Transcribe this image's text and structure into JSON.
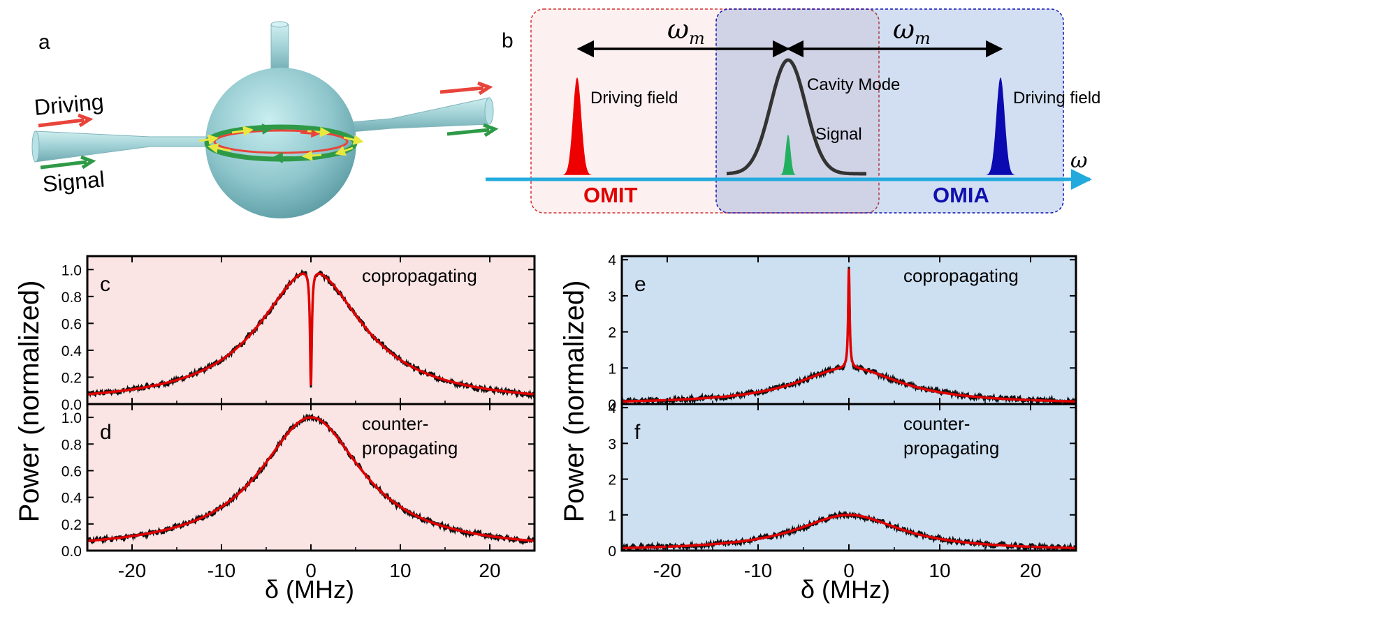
{
  "panel_a": {
    "label": "a",
    "driving": "Driving",
    "signal": "Signal",
    "colors": {
      "driving_arrow": "#e8443a",
      "signal_arrow": "#2e9a47",
      "sphere": "#8ec6cc"
    }
  },
  "panel_b": {
    "label": "b",
    "omega_m_left": "ω",
    "omega_m_right": "ω",
    "omega_sub": "m",
    "driving_field_left": "Driving field",
    "cavity_mode": "Cavity Mode",
    "signal": "Signal",
    "driving_field_right": "Driving field",
    "omega": "ω",
    "omit": "OMIT",
    "omia": "OMIA",
    "colors": {
      "omit": "#e00000",
      "omia": "#1010b0",
      "axis": "#22aadd",
      "signal": "#22b060"
    }
  },
  "left_group": {
    "ylabel": "Power (normalized)",
    "xlabel": "δ (MHz)"
  },
  "right_group": {
    "ylabel": "Power (normalized)",
    "xlabel": "δ (MHz)"
  },
  "chart_data": [
    {
      "type": "line",
      "panel": "c",
      "label": "c",
      "annotation": [
        "copropagating"
      ],
      "xlim": [
        -25,
        25
      ],
      "ylim": [
        0,
        1.1
      ],
      "xticks": [
        -20,
        -10,
        0,
        10,
        20
      ],
      "xtick_labels": [
        "-20",
        "-10",
        "0",
        "10",
        "20"
      ],
      "yticks": [
        0.0,
        0.2,
        0.4,
        0.6,
        0.8,
        1.0
      ],
      "ytick_labels": [
        "0.0",
        "0.2",
        "0.4",
        "0.6",
        "0.8",
        "1.0"
      ],
      "background": "#fbe4e4",
      "model": {
        "kind": "lorentzian_dip",
        "center": 0,
        "hwhm": 7,
        "peak": 1.0,
        "dip_min": 0.14,
        "dip_hwhm": 0.12
      },
      "series": [
        {
          "name": "",
          "color": "#111111",
          "role": "data"
        },
        {
          "name": "",
          "color": "#e00000",
          "role": "fit"
        }
      ]
    },
    {
      "type": "line",
      "panel": "d",
      "label": "d",
      "annotation": [
        "counter-",
        "propagating"
      ],
      "xlim": [
        -25,
        25
      ],
      "ylim": [
        0,
        1.1
      ],
      "xticks": [
        -20,
        -10,
        0,
        10,
        20
      ],
      "xtick_labels": [
        "-20",
        "-10",
        "0",
        "10",
        "20"
      ],
      "yticks": [
        0.0,
        0.2,
        0.4,
        0.6,
        0.8,
        1.0
      ],
      "ytick_labels": [
        "0.0",
        "0.2",
        "0.4",
        "0.6",
        "0.8",
        "1.0"
      ],
      "background": "#fbe4e4",
      "model": {
        "kind": "lorentzian",
        "center": 0,
        "hwhm": 7,
        "peak": 1.0
      },
      "series": [
        {
          "name": "",
          "color": "#111111",
          "role": "data"
        },
        {
          "name": "",
          "color": "#e00000",
          "role": "fit"
        }
      ]
    },
    {
      "type": "line",
      "panel": "e",
      "label": "e",
      "annotation": [
        "copropagating"
      ],
      "xlim": [
        -25,
        25
      ],
      "ylim": [
        0,
        4.1
      ],
      "xticks": [
        -20,
        -10,
        0,
        10,
        20
      ],
      "xtick_labels": [
        "-20",
        "-10",
        "0",
        "10",
        "20"
      ],
      "yticks": [
        0,
        1,
        2,
        3,
        4
      ],
      "ytick_labels": [
        "0",
        "1",
        "2",
        "3",
        "4"
      ],
      "background": "#cde0f2",
      "model": {
        "kind": "lorentzian_peak",
        "center": 0,
        "hwhm": 7,
        "peak": 1.0,
        "spike_max": 3.75,
        "spike_hwhm": 0.1
      },
      "series": [
        {
          "name": "",
          "color": "#111111",
          "role": "data"
        },
        {
          "name": "",
          "color": "#e00000",
          "role": "fit"
        }
      ]
    },
    {
      "type": "line",
      "panel": "f",
      "label": "f",
      "annotation": [
        "counter-",
        "propagating"
      ],
      "xlim": [
        -25,
        25
      ],
      "ylim": [
        0,
        4.1
      ],
      "xticks": [
        -20,
        -10,
        0,
        10,
        20
      ],
      "xtick_labels": [
        "-20",
        "-10",
        "0",
        "10",
        "20"
      ],
      "yticks": [
        0,
        1,
        2,
        3,
        4
      ],
      "ytick_labels": [
        "0",
        "1",
        "2",
        "3",
        "4"
      ],
      "background": "#cde0f2",
      "model": {
        "kind": "lorentzian",
        "center": 0,
        "hwhm": 7,
        "peak": 1.0
      },
      "series": [
        {
          "name": "",
          "color": "#111111",
          "role": "data"
        },
        {
          "name": "",
          "color": "#e00000",
          "role": "fit"
        }
      ]
    }
  ]
}
